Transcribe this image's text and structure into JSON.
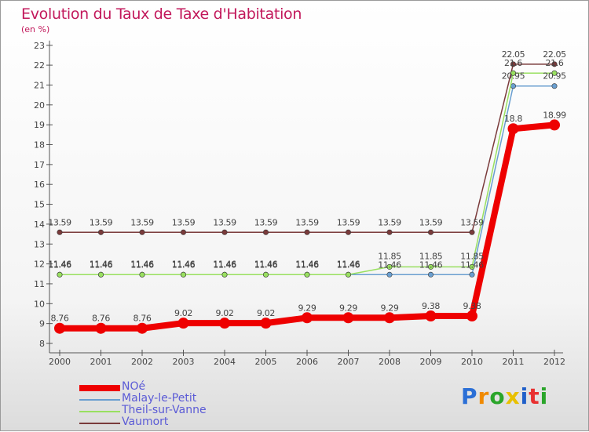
{
  "chart_data": {
    "type": "line",
    "title": "Evolution du Taux de Taxe d'Habitation",
    "ylabel": "(en %)",
    "xlabel": "",
    "categories": [
      "2000",
      "2001",
      "2002",
      "2003",
      "2004",
      "2005",
      "2006",
      "2007",
      "2008",
      "2009",
      "2010",
      "2011",
      "2012"
    ],
    "ylim": [
      8,
      23
    ],
    "yticks": [
      8,
      9,
      10,
      11,
      12,
      13,
      14,
      15,
      16,
      17,
      18,
      19,
      20,
      21,
      22,
      23
    ],
    "grid": false,
    "legend_position": "bottom-left",
    "series": [
      {
        "name": "NOé",
        "color": "#ee0000",
        "values": [
          8.76,
          8.76,
          8.76,
          9.02,
          9.02,
          9.02,
          9.29,
          9.29,
          9.29,
          9.38,
          9.38,
          18.8,
          18.99
        ],
        "labels": [
          "8.76",
          "8.76",
          "8.76",
          "9.02",
          "9.02",
          "9.02",
          "9.29",
          "9.29",
          "9.29",
          "9.38",
          "9.38",
          "18.8",
          "18.99"
        ]
      },
      {
        "name": "Malay-le-Petit",
        "color": "#6a9fd0",
        "values": [
          11.46,
          11.46,
          11.46,
          11.46,
          11.46,
          11.46,
          11.46,
          11.46,
          11.46,
          11.46,
          11.46,
          20.95,
          20.95
        ],
        "labels": [
          "11.46",
          "11.46",
          "11.46",
          "11.46",
          "11.46",
          "11.46",
          "11.46",
          "11.46",
          "11.46",
          "11.46",
          "11.46",
          "20.95",
          "20.95"
        ]
      },
      {
        "name": "Theil-sur-Vanne",
        "color": "#99e060",
        "values": [
          11.46,
          11.46,
          11.46,
          11.46,
          11.46,
          11.46,
          11.46,
          11.46,
          11.85,
          11.85,
          11.85,
          21.6,
          21.6
        ],
        "labels": [
          "11.46",
          "11.46",
          "11.46",
          "11.46",
          "11.46",
          "11.46",
          "11.46",
          "11.46",
          "11.85",
          "11.85",
          "11.85",
          "21.6",
          "21.6"
        ]
      },
      {
        "name": "Vaumort",
        "color": "#7a3b3b",
        "values": [
          13.59,
          13.59,
          13.59,
          13.59,
          13.59,
          13.59,
          13.59,
          13.59,
          13.59,
          13.59,
          13.59,
          22.05,
          22.05
        ],
        "labels": [
          "13.59",
          "13.59",
          "13.59",
          "13.59",
          "13.59",
          "13.59",
          "13.59",
          "13.59",
          "13.59",
          "13.59",
          "13.59",
          "22.05",
          "22.05"
        ]
      }
    ]
  },
  "logo": {
    "text": "Proxiti",
    "letters": [
      "P",
      "r",
      "o",
      "x",
      "i",
      "t",
      "i"
    ],
    "colors": [
      "#2b6fd6",
      "#f08a00",
      "#2aa52a",
      "#e8c000",
      "#1f5fc9",
      "#e83030",
      "#2aa52a"
    ]
  }
}
